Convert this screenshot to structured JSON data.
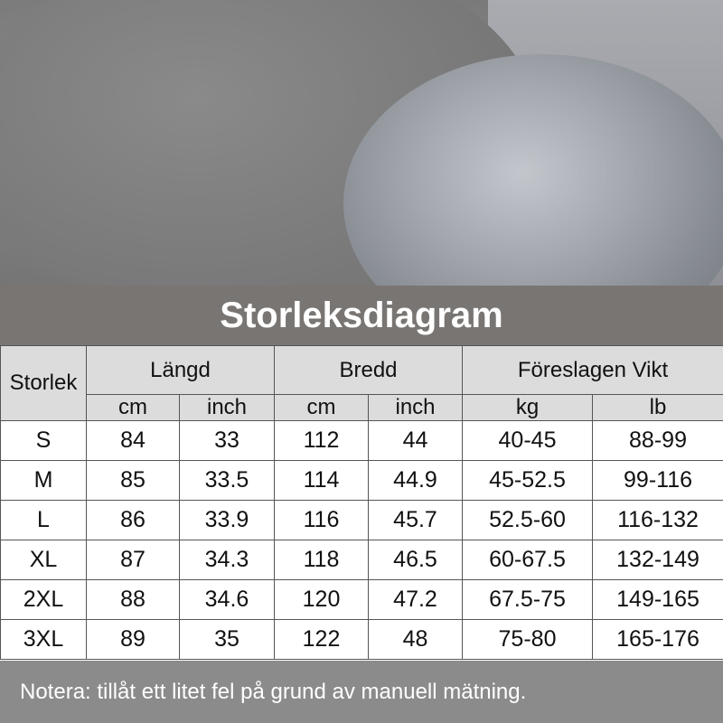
{
  "title": "Storleksdiagram",
  "table": {
    "size_header": "Storlek",
    "groups": [
      "Längd",
      "Bredd",
      "Föreslagen Vikt"
    ],
    "units": [
      "cm",
      "inch",
      "cm",
      "inch",
      "kg",
      "lb"
    ],
    "rows": [
      [
        "S",
        "84",
        "33",
        "112",
        "44",
        "40-45",
        "88-99"
      ],
      [
        "M",
        "85",
        "33.5",
        "114",
        "44.9",
        "45-52.5",
        "99-116"
      ],
      [
        "L",
        "86",
        "33.9",
        "116",
        "45.7",
        "52.5-60",
        "116-132"
      ],
      [
        "XL",
        "87",
        "34.3",
        "118",
        "46.5",
        "60-67.5",
        "132-149"
      ],
      [
        "2XL",
        "88",
        "34.6",
        "120",
        "47.2",
        "67.5-75",
        "149-165"
      ],
      [
        "3XL",
        "89",
        "35",
        "122",
        "48",
        "75-80",
        "165-176"
      ]
    ]
  },
  "note": "Notera: tillåt ett litet fel på grund av manuell mätning."
}
